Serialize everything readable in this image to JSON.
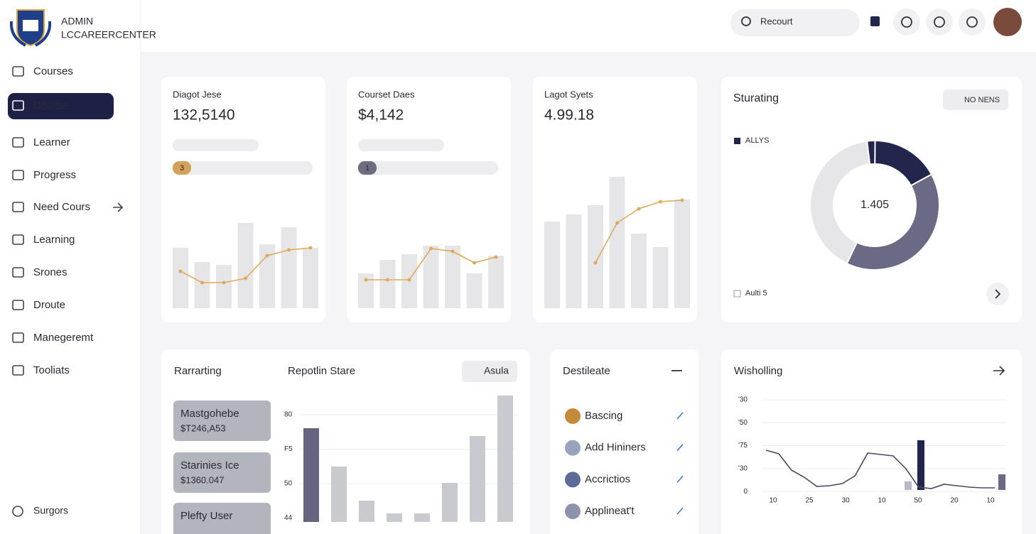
{
  "sidebar": {
    "brand": [
      "ADMIN",
      "LCCAREERCENTER"
    ],
    "active": 1,
    "nav": [
      "Courses",
      "Course",
      "Learner",
      "Progress",
      "Need Cours",
      "Learning",
      "Srones",
      "Droute",
      "Manegeremt",
      "Tooliats"
    ],
    "footer": "Surgors"
  },
  "topbar": {
    "search": "Recourt"
  },
  "stats": [
    {
      "label": "Diagot Jese",
      "value": "132,5140",
      "badge": "3",
      "badge_color": "#d4a259",
      "ylim": [
        0,
        200
      ],
      "bars": [
        85,
        65,
        61,
        120,
        90,
        114,
        85
      ],
      "line": [
        52,
        36,
        36,
        42,
        74,
        82,
        85
      ]
    },
    {
      "label": "Courset Daes",
      "value": "$4,142",
      "badge": "1",
      "badge_color": "#6e6d80",
      "ylim": [
        0,
        200
      ],
      "bars": [
        49,
        68,
        76,
        88,
        88,
        49,
        74
      ],
      "line": [
        40,
        40,
        40,
        84,
        80,
        64,
        72
      ]
    },
    {
      "label": "Lagot Syets",
      "value": "4.99.18",
      "ylim": [
        0,
        200
      ],
      "bars": [
        122,
        132,
        145,
        185,
        105,
        86,
        153
      ],
      "line": [
        null,
        null,
        64,
        120,
        140,
        150,
        152
      ]
    }
  ],
  "donut": {
    "title": "Sturating",
    "button": "NO NENS",
    "legend": [
      "ALLYS",
      "Aulti 5"
    ],
    "center": "1.405",
    "values": [
      2,
      17,
      40,
      41
    ],
    "colors": [
      "#22264d",
      "#22264d",
      "#6b6a84",
      "#e6e6e8"
    ]
  },
  "report": {
    "title": "Rarrarting",
    "chart_title": "Repotlin Stare",
    "button": "Asula",
    "items": [
      [
        "Mastgohebe",
        "$T246,A53"
      ],
      [
        "Starinies Ice",
        "$1360.047"
      ],
      [
        "Plefty User"
      ]
    ],
    "y_labels": [
      "80",
      "F5",
      "50",
      "44"
    ],
    "ylim": [
      0,
      180
    ],
    "bars": [
      132,
      78,
      30,
      12,
      12,
      55,
      121,
      178
    ],
    "colors": [
      "#676480",
      "#c9cad0"
    ]
  },
  "list": {
    "title": "Destileate",
    "items": [
      "Bascing",
      "Add Hininers",
      "Accrictios",
      "Applineat't"
    ]
  },
  "trend": {
    "title": "Wisholling",
    "y_labels": [
      "'30",
      "'50",
      "'75",
      "'30",
      "0"
    ],
    "x_labels": [
      "10",
      "25",
      "30",
      "10",
      "50",
      "20",
      "10"
    ],
    "ylim": [
      0,
      130
    ],
    "line": [
      56,
      51,
      28,
      18,
      5,
      6,
      9,
      20,
      52,
      50,
      48,
      30,
      4,
      2,
      8,
      6,
      4,
      3,
      3
    ],
    "bars": [
      12,
      70,
      22
    ],
    "bar_colors": [
      "#b9b9c6",
      "#22264d",
      "#6b6a84"
    ]
  }
}
